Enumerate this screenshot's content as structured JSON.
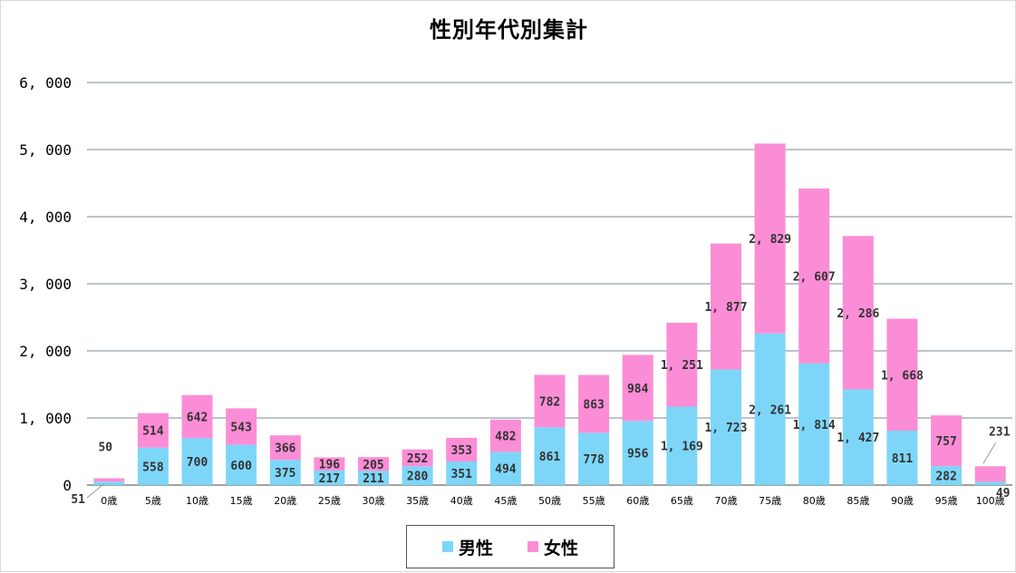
{
  "chart_data": {
    "type": "bar",
    "stacked": true,
    "title": "性別年代別集計",
    "categories": [
      "0歳",
      "5歳",
      "10歳",
      "15歳",
      "20歳",
      "25歳",
      "30歳",
      "35歳",
      "40歳",
      "45歳",
      "50歳",
      "55歳",
      "60歳",
      "65歳",
      "70歳",
      "75歳",
      "80歳",
      "85歳",
      "90歳",
      "95歳",
      "100歳"
    ],
    "series": [
      {
        "name": "男性",
        "color": "#7dd6f8",
        "values": [
          51,
          558,
          700,
          600,
          375,
          217,
          211,
          280,
          351,
          494,
          861,
          778,
          956,
          1169,
          1723,
          2261,
          1814,
          1427,
          811,
          282,
          49
        ],
        "labels": [
          "51",
          "558",
          "700",
          "600",
          "375",
          "217",
          "211",
          "280",
          "351",
          "494",
          "861",
          "778",
          "956",
          "1, 169",
          "1, 723",
          "2, 261",
          "1, 814",
          "1, 427",
          "811",
          "282",
          "49"
        ]
      },
      {
        "name": "女性",
        "color": "#fb8dd6",
        "values": [
          50,
          514,
          642,
          543,
          366,
          196,
          205,
          252,
          353,
          482,
          782,
          863,
          984,
          1251,
          1877,
          2829,
          2607,
          2286,
          1668,
          757,
          231
        ],
        "labels": [
          "50",
          "514",
          "642",
          "543",
          "366",
          "196",
          "205",
          "252",
          "353",
          "482",
          "782",
          "863",
          "984",
          "1, 251",
          "1, 877",
          "2, 829",
          "2, 607",
          "2, 286",
          "1, 668",
          "757",
          "231"
        ]
      }
    ],
    "ylim": [
      0,
      6000
    ],
    "yticks": [
      0,
      1000,
      2000,
      3000,
      4000,
      5000,
      6000
    ],
    "ytick_labels": [
      "0",
      "1, 000",
      "2, 000",
      "3, 000",
      "4, 000",
      "5, 000",
      "6, 000"
    ],
    "grid": true,
    "legend_position": "bottom",
    "xlabel": "",
    "ylabel": ""
  }
}
